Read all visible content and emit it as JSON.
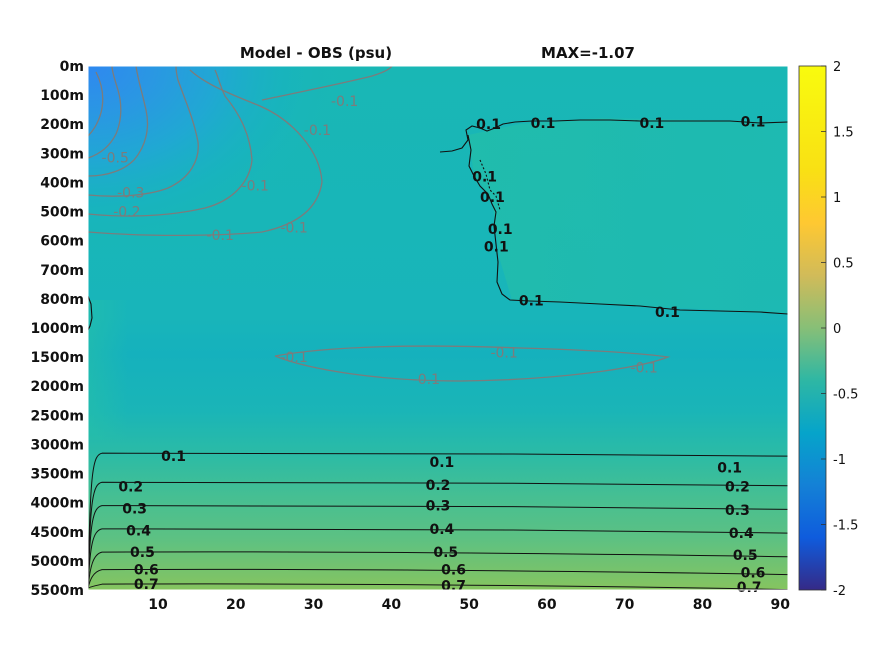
{
  "chart_data": {
    "type": "heatmap",
    "title_left": "Model - OBS (psu)",
    "title_right": "MAX=-1.07",
    "x_range": [
      1,
      91
    ],
    "x_ticks": [
      10,
      20,
      30,
      40,
      50,
      60,
      70,
      80,
      90
    ],
    "y_tick_labels": [
      "0m",
      "100m",
      "200m",
      "300m",
      "400m",
      "500m",
      "600m",
      "700m",
      "800m",
      "1000m",
      "1500m",
      "2000m",
      "2500m",
      "3000m",
      "3500m",
      "4000m",
      "4500m",
      "5000m",
      "5500m"
    ],
    "colorbar": {
      "range": [
        -2,
        2
      ],
      "ticks": [
        "2",
        "1.5",
        "1",
        "0.5",
        "0",
        "-0.5",
        "-1",
        "-1.5",
        "-2"
      ],
      "colormap": "parula"
    },
    "deep_contours": [
      {
        "level": "0.1",
        "depth_index": 13.3
      },
      {
        "level": "0.2",
        "depth_index": 14.3
      },
      {
        "level": "0.3",
        "depth_index": 15.1
      },
      {
        "level": "0.4",
        "depth_index": 15.9
      },
      {
        "level": "0.5",
        "depth_index": 16.7
      },
      {
        "level": "0.6",
        "depth_index": 17.3
      },
      {
        "level": "0.7",
        "depth_index": 17.8
      }
    ],
    "contour_labels_black": [
      {
        "text": "0.1",
        "x": 12.0,
        "depth_index": 13.4
      },
      {
        "text": "0.1",
        "x": 46.5,
        "depth_index": 13.6
      },
      {
        "text": "0.1",
        "x": 83.5,
        "depth_index": 13.8
      },
      {
        "text": "0.2",
        "x": 6.5,
        "depth_index": 14.45
      },
      {
        "text": "0.2",
        "x": 46.0,
        "depth_index": 14.4
      },
      {
        "text": "0.2",
        "x": 84.5,
        "depth_index": 14.45
      },
      {
        "text": "0.3",
        "x": 7.0,
        "depth_index": 15.2
      },
      {
        "text": "0.3",
        "x": 46.0,
        "depth_index": 15.1
      },
      {
        "text": "0.3",
        "x": 84.5,
        "depth_index": 15.25
      },
      {
        "text": "0.4",
        "x": 7.5,
        "depth_index": 15.95
      },
      {
        "text": "0.4",
        "x": 46.5,
        "depth_index": 15.9
      },
      {
        "text": "0.4",
        "x": 85.0,
        "depth_index": 16.05
      },
      {
        "text": "0.5",
        "x": 8.0,
        "depth_index": 16.7
      },
      {
        "text": "0.5",
        "x": 47.0,
        "depth_index": 16.7
      },
      {
        "text": "0.5",
        "x": 85.5,
        "depth_index": 16.8
      },
      {
        "text": "0.6",
        "x": 8.5,
        "depth_index": 17.3
      },
      {
        "text": "0.6",
        "x": 48.0,
        "depth_index": 17.3
      },
      {
        "text": "0.6",
        "x": 86.5,
        "depth_index": 17.4
      },
      {
        "text": "0.7",
        "x": 8.5,
        "depth_index": 17.8
      },
      {
        "text": "0.7",
        "x": 48.0,
        "depth_index": 17.85
      },
      {
        "text": "0.7",
        "x": 86.0,
        "depth_index": 17.9
      },
      {
        "text": "0.1",
        "x": 59.5,
        "depth_index": 1.95
      },
      {
        "text": "0.1",
        "x": 73.5,
        "depth_index": 1.95
      },
      {
        "text": "0.1",
        "x": 86.5,
        "depth_index": 1.9
      },
      {
        "text": "0.1",
        "x": 58.0,
        "depth_index": 8.05
      },
      {
        "text": "0.1",
        "x": 75.5,
        "depth_index": 8.45
      },
      {
        "text": "0.1",
        "x": 52.5,
        "depth_index": 2.0
      },
      {
        "text": "0.1",
        "x": 52.0,
        "depth_index": 3.8
      },
      {
        "text": "0.1",
        "x": 53.0,
        "depth_index": 4.5
      },
      {
        "text": "0.1",
        "x": 54.0,
        "depth_index": 5.6
      },
      {
        "text": "0.1",
        "x": 53.5,
        "depth_index": 6.2
      }
    ],
    "contour_labels_gray": [
      {
        "text": "-0.1",
        "x": 18.0,
        "depth_index": 5.8
      },
      {
        "text": "-0.1",
        "x": 27.5,
        "depth_index": 5.55
      },
      {
        "text": "-0.1",
        "x": 22.5,
        "depth_index": 4.1
      },
      {
        "text": "-0.1",
        "x": 30.5,
        "depth_index": 2.2
      },
      {
        "text": "-0.1",
        "x": 34.0,
        "depth_index": 1.2
      },
      {
        "text": "-0.2",
        "x": 6.0,
        "depth_index": 5.0
      },
      {
        "text": "-0.3",
        "x": 6.5,
        "depth_index": 4.35
      },
      {
        "text": "-0.5",
        "x": 4.5,
        "depth_index": 3.15
      },
      {
        "text": "-0.1",
        "x": 27.5,
        "depth_index": 10.0
      },
      {
        "text": "-0.1",
        "x": 54.5,
        "depth_index": 9.85
      },
      {
        "text": "-0.1",
        "x": 44.5,
        "depth_index": 10.75
      },
      {
        "text": "-0.1",
        "x": 72.5,
        "depth_index": 10.35
      }
    ]
  }
}
